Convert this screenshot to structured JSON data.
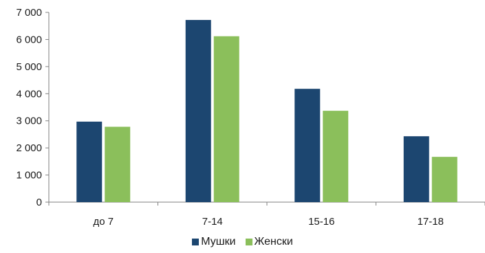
{
  "chart_data": {
    "type": "bar",
    "categories": [
      "до 7",
      "7-14",
      "15-16",
      "17-18"
    ],
    "series": [
      {
        "name": "Мушки",
        "values": [
          2970,
          6720,
          4180,
          2430
        ],
        "color": "#1c4670"
      },
      {
        "name": "Женски",
        "values": [
          2780,
          6120,
          3370,
          1670
        ],
        "color": "#8bbf5b"
      }
    ],
    "y_ticks": [
      "0",
      "1 000",
      "2 000",
      "3 000",
      "4 000",
      "5 000",
      "6 000",
      "7 000"
    ],
    "ylim": [
      0,
      7000
    ],
    "grid": false,
    "legend_position": "bottom"
  }
}
